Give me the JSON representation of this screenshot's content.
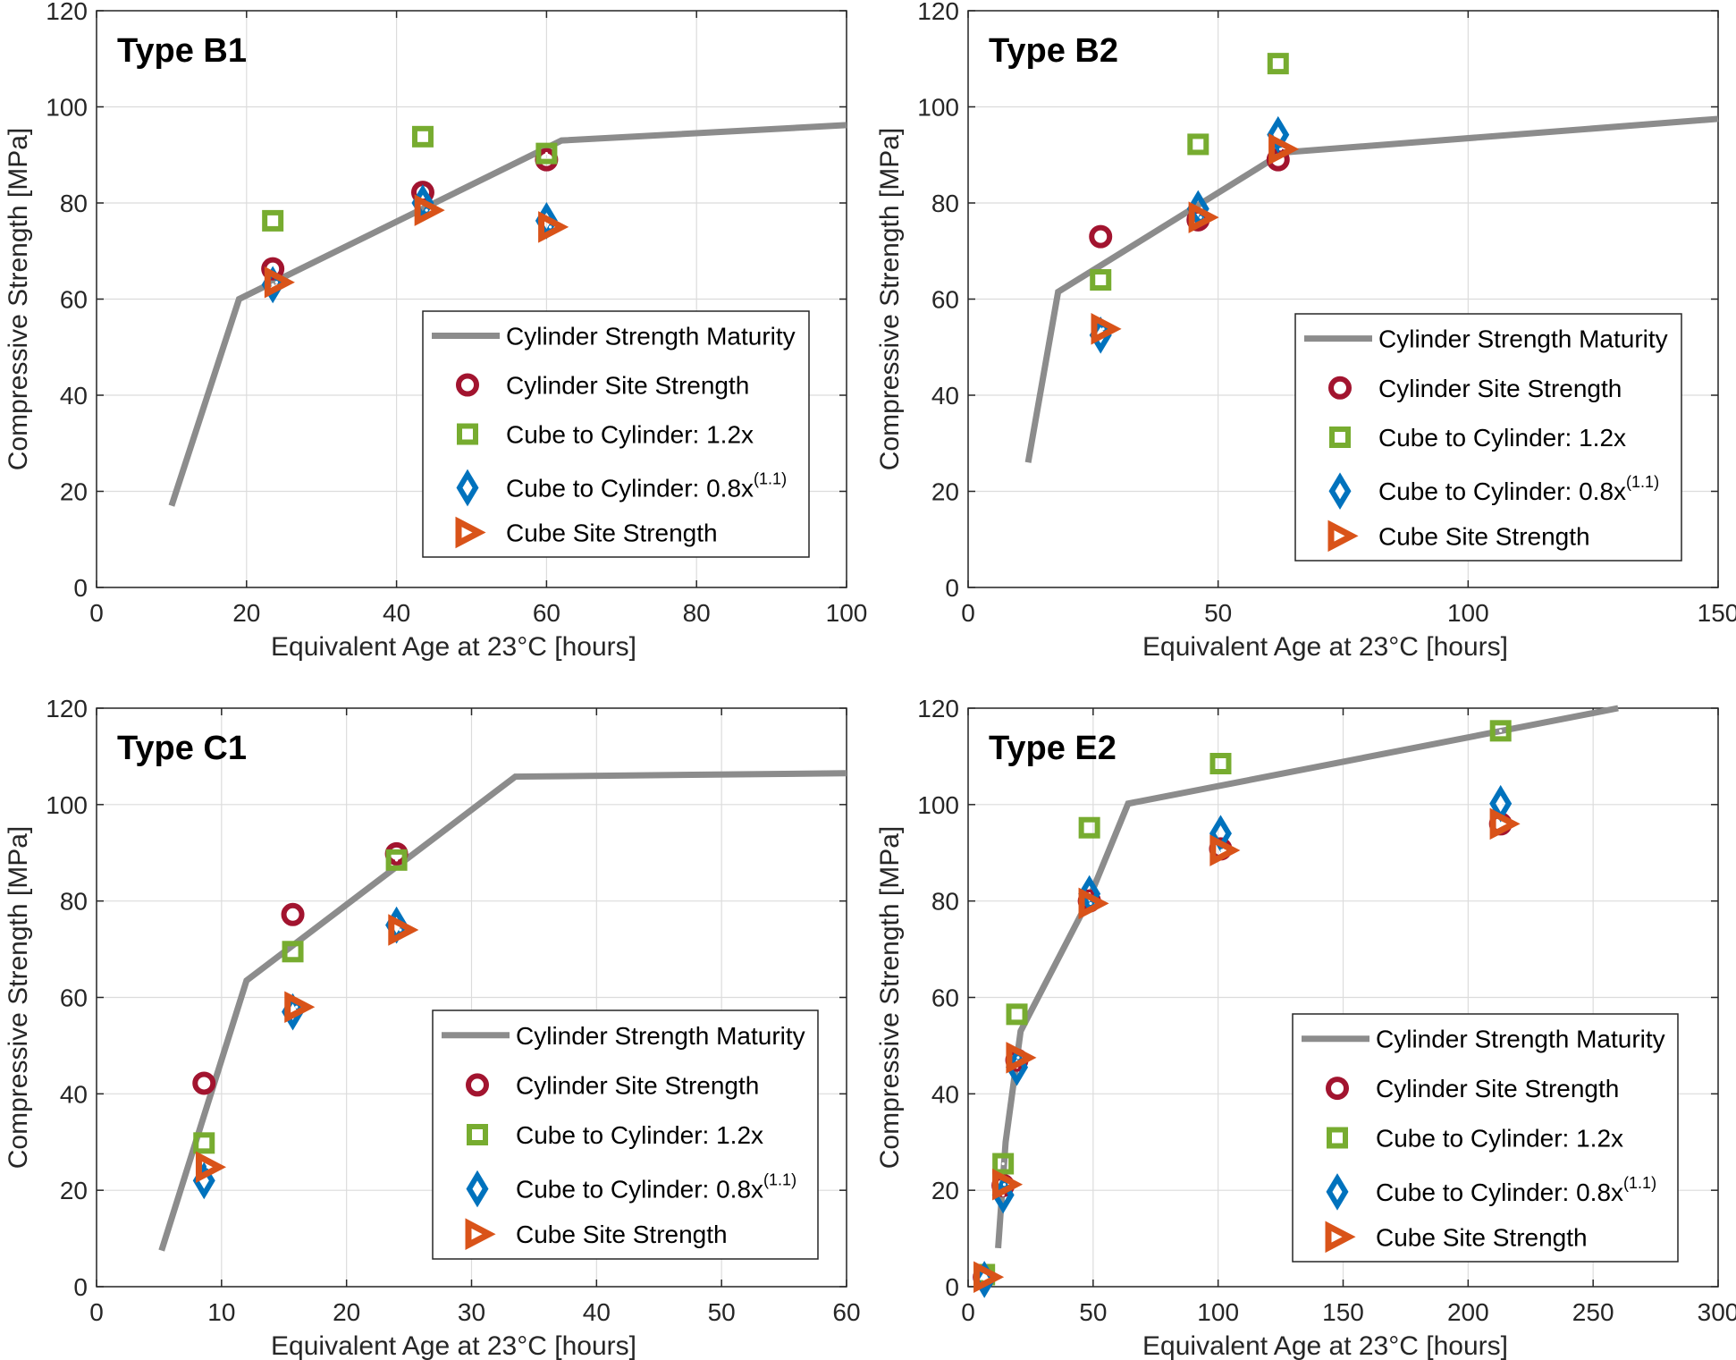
{
  "chart_data": [
    {
      "type": "scatter",
      "title": "Type B1",
      "xlabel": "Equivalent Age at 23°C [hours]",
      "ylabel": "Compressive Strength [MPa]",
      "xlim": [
        0,
        100
      ],
      "ylim": [
        0,
        120
      ],
      "xticks": [
        0,
        20,
        40,
        60,
        80,
        100
      ],
      "yticks": [
        0,
        20,
        40,
        60,
        80,
        100,
        120
      ],
      "grid": true,
      "legend_position": "bottom-right",
      "series": [
        {
          "name": "Cylinder Strength Maturity",
          "kind": "line",
          "color": "#8c8c8c",
          "x": [
            10,
            19,
            62,
            100
          ],
          "y": [
            17,
            60,
            93,
            96.2
          ]
        },
        {
          "name": "Cylinder Site Strength",
          "kind": "circle",
          "color": "#a2142f",
          "x": [
            23.5,
            43.5,
            60
          ],
          "y": [
            66.3,
            82.2,
            89
          ]
        },
        {
          "name": "Cube to Cylinder: 1.2x",
          "kind": "square",
          "color": "#77ac30",
          "x": [
            23.5,
            43.5,
            60
          ],
          "y": [
            76.3,
            93.8,
            90.3
          ]
        },
        {
          "name": "Cube to Cylinder: 0.8x",
          "name_sup": "(1.1)",
          "kind": "diamond",
          "color": "#0072bd",
          "x": [
            23.5,
            43.5,
            60
          ],
          "y": [
            63,
            80,
            76.3
          ]
        },
        {
          "name": "Cube Site Strength",
          "kind": "triangle",
          "color": "#d95319",
          "x": [
            24,
            44,
            60.5
          ],
          "y": [
            63.5,
            78.5,
            75
          ]
        }
      ]
    },
    {
      "type": "scatter",
      "title": "Type B2",
      "xlabel": "Equivalent Age at 23°C [hours]",
      "ylabel": "Compressive Strength [MPa]",
      "xlim": [
        0,
        150
      ],
      "ylim": [
        0,
        120
      ],
      "xticks": [
        0,
        50,
        100,
        150
      ],
      "yticks": [
        0,
        20,
        40,
        60,
        80,
        100,
        120
      ],
      "grid": true,
      "legend_position": "bottom-right",
      "series": [
        {
          "name": "Cylinder Strength Maturity",
          "kind": "line",
          "color": "#8c8c8c",
          "x": [
            12,
            18,
            63,
            150
          ],
          "y": [
            26,
            61.5,
            90.5,
            97.5
          ]
        },
        {
          "name": "Cylinder Site Strength",
          "kind": "circle",
          "color": "#a2142f",
          "x": [
            26.5,
            46,
            62
          ],
          "y": [
            73,
            76.5,
            89
          ]
        },
        {
          "name": "Cube to Cylinder: 1.2x",
          "kind": "square",
          "color": "#77ac30",
          "x": [
            26.5,
            46,
            62
          ],
          "y": [
            64,
            92.2,
            109
          ]
        },
        {
          "name": "Cube to Cylinder: 0.8x",
          "name_sup": "(1.1)",
          "kind": "diamond",
          "color": "#0072bd",
          "x": [
            26.5,
            46,
            62
          ],
          "y": [
            52.5,
            78.8,
            94.2
          ]
        },
        {
          "name": "Cube Site Strength",
          "kind": "triangle",
          "color": "#d95319",
          "x": [
            27,
            46.5,
            62.5
          ],
          "y": [
            53.8,
            77,
            91.2
          ]
        }
      ]
    },
    {
      "type": "scatter",
      "title": "Type C1",
      "xlabel": "Equivalent Age at 23°C [hours]",
      "ylabel": "Compressive Strength [MPa]",
      "xlim": [
        0,
        60
      ],
      "ylim": [
        0,
        120
      ],
      "xticks": [
        0,
        10,
        20,
        30,
        40,
        50,
        60
      ],
      "yticks": [
        0,
        20,
        40,
        60,
        80,
        100,
        120
      ],
      "grid": true,
      "legend_position": "bottom-right",
      "series": [
        {
          "name": "Cylinder Strength Maturity",
          "kind": "line",
          "color": "#8c8c8c",
          "x": [
            5.2,
            12,
            33.5,
            60
          ],
          "y": [
            7.5,
            63.5,
            105.8,
            106.5
          ]
        },
        {
          "name": "Cylinder Site Strength",
          "kind": "circle",
          "color": "#a2142f",
          "x": [
            8.6,
            15.7,
            24
          ],
          "y": [
            42.2,
            77.2,
            89.8
          ]
        },
        {
          "name": "Cube to Cylinder: 1.2x",
          "kind": "square",
          "color": "#77ac30",
          "x": [
            8.6,
            15.7,
            24
          ],
          "y": [
            29.8,
            69.5,
            88.5
          ]
        },
        {
          "name": "Cube to Cylinder: 0.8x",
          "name_sup": "(1.1)",
          "kind": "diamond",
          "color": "#0072bd",
          "x": [
            8.6,
            15.7,
            24
          ],
          "y": [
            22,
            57,
            75
          ]
        },
        {
          "name": "Cube Site Strength",
          "kind": "triangle",
          "color": "#d95319",
          "x": [
            8.9,
            16,
            24.3
          ],
          "y": [
            24.8,
            58,
            74
          ]
        }
      ]
    },
    {
      "type": "scatter",
      "title": "Type E2",
      "xlabel": "Equivalent Age at 23°C [hours]",
      "ylabel": "Compressive Strength [MPa]",
      "xlim": [
        0,
        300
      ],
      "ylim": [
        0,
        120
      ],
      "xticks": [
        0,
        50,
        100,
        150,
        200,
        250,
        300
      ],
      "yticks": [
        0,
        20,
        40,
        60,
        80,
        100,
        120
      ],
      "grid": true,
      "legend_position": "bottom-right",
      "series": [
        {
          "name": "Cylinder Strength Maturity",
          "kind": "line",
          "color": "#8c8c8c",
          "x": [
            12,
            15,
            21,
            48,
            64,
            260
          ],
          "y": [
            8,
            30,
            53,
            80,
            100.2,
            120
          ]
        },
        {
          "name": "Cylinder Site Strength",
          "kind": "circle",
          "color": "#a2142f",
          "x": [
            6.5,
            14,
            19.5,
            48.5,
            101,
            213
          ],
          "y": [
            2,
            21,
            47,
            80,
            90.8,
            96
          ]
        },
        {
          "name": "Cube to Cylinder: 1.2x",
          "kind": "square",
          "color": "#77ac30",
          "x": [
            6.5,
            14,
            19.5,
            48.5,
            101,
            213
          ],
          "y": [
            2.5,
            25.5,
            56.5,
            95.2,
            108.5,
            115.3
          ]
        },
        {
          "name": "Cube to Cylinder: 0.8x",
          "name_sup": "(1.1)",
          "kind": "diamond",
          "color": "#0072bd",
          "x": [
            6.5,
            14,
            19.5,
            48.5,
            101,
            213
          ],
          "y": [
            1.5,
            19,
            45.5,
            81.5,
            94,
            100.2
          ]
        },
        {
          "name": "Cube Site Strength",
          "kind": "triangle",
          "color": "#d95319",
          "x": [
            7,
            14.5,
            20,
            49,
            101.5,
            213.5
          ],
          "y": [
            2,
            21.2,
            47.5,
            79.5,
            90.5,
            96
          ]
        }
      ]
    }
  ]
}
